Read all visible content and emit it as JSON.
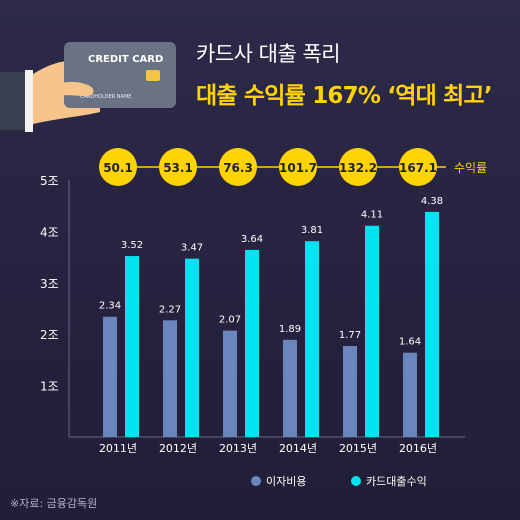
{
  "title": {
    "line1": "카드사 대출 폭리",
    "line2": "대출 수익률 167% ‘역대 최고’"
  },
  "card": {
    "brand": "CREDIT CARD",
    "holder": "CARDHOLDER NAME"
  },
  "source": "※자료: 금융감독원",
  "colors": {
    "interest": "#6b86bd",
    "loan": "#00e3f2",
    "rate_circle": "#ffd400",
    "title_accent": "#ffd400"
  },
  "chart_data": {
    "type": "bar",
    "categories": [
      "2011년",
      "2012년",
      "2013년",
      "2014년",
      "2015년",
      "2016년"
    ],
    "series": [
      {
        "name": "이자비용",
        "values": [
          2.34,
          2.27,
          2.07,
          1.89,
          1.77,
          1.64
        ]
      },
      {
        "name": "카드대출수익",
        "values": [
          3.52,
          3.47,
          3.64,
          3.81,
          4.11,
          4.38
        ]
      }
    ],
    "rate": {
      "name": "수익률",
      "values": [
        "50.1",
        "53.1",
        "76.3",
        "101.7",
        "132.2",
        "167.1"
      ]
    },
    "y_ticks": [
      "1조",
      "2조",
      "3조",
      "4조",
      "5조"
    ],
    "ylim": [
      0,
      5
    ],
    "legend_position": "bottom-right"
  }
}
